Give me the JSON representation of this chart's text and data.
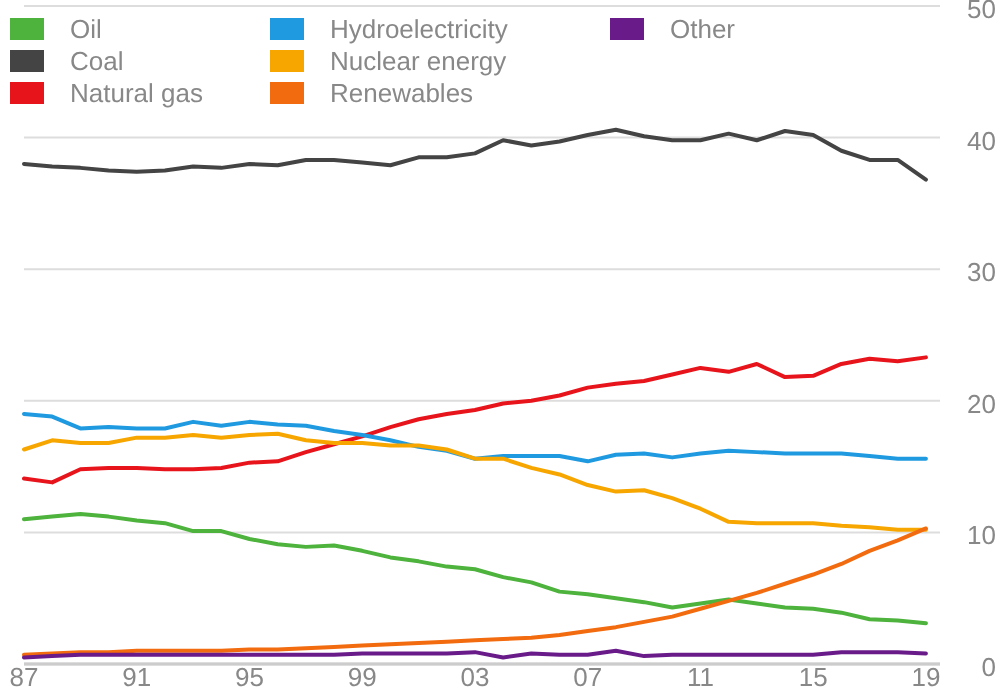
{
  "chart_data": {
    "type": "line",
    "x": [
      1987,
      1988,
      1989,
      1990,
      1991,
      1992,
      1993,
      1994,
      1995,
      1996,
      1997,
      1998,
      1999,
      2000,
      2001,
      2002,
      2003,
      2004,
      2005,
      2006,
      2007,
      2008,
      2009,
      2010,
      2011,
      2012,
      2013,
      2014,
      2015,
      2016,
      2017,
      2018,
      2019
    ],
    "series": [
      {
        "name": "Oil",
        "color": "#4db33d",
        "values": [
          11.0,
          11.2,
          11.4,
          11.2,
          10.9,
          10.7,
          10.1,
          10.1,
          9.5,
          9.1,
          8.9,
          9.0,
          8.6,
          8.1,
          7.8,
          7.4,
          7.2,
          6.6,
          6.2,
          5.5,
          5.3,
          5.0,
          4.7,
          4.3,
          4.6,
          4.9,
          4.6,
          4.3,
          4.2,
          3.9,
          3.4,
          3.3,
          3.1
        ]
      },
      {
        "name": "Coal",
        "color": "#444444",
        "values": [
          38.0,
          37.8,
          37.7,
          37.5,
          37.4,
          37.5,
          37.8,
          37.7,
          38.0,
          37.9,
          38.3,
          38.3,
          38.1,
          37.9,
          38.5,
          38.5,
          38.8,
          39.8,
          39.4,
          39.7,
          40.2,
          40.6,
          40.1,
          39.8,
          39.8,
          40.3,
          39.8,
          40.5,
          40.2,
          39.0,
          38.3,
          38.3,
          36.8
        ]
      },
      {
        "name": "Natural gas",
        "color": "#e8141c",
        "values": [
          14.1,
          13.8,
          14.8,
          14.9,
          14.9,
          14.8,
          14.8,
          14.9,
          15.3,
          15.4,
          16.1,
          16.7,
          17.3,
          18.0,
          18.6,
          19.0,
          19.3,
          19.8,
          20.0,
          20.4,
          21.0,
          21.3,
          21.5,
          22.0,
          22.5,
          22.2,
          22.8,
          21.8,
          21.9,
          22.8,
          23.2,
          23.0,
          23.3
        ]
      },
      {
        "name": "Hydroelectricity",
        "color": "#1f9ae0",
        "values": [
          19.0,
          18.8,
          17.9,
          18.0,
          17.9,
          17.9,
          18.4,
          18.1,
          18.4,
          18.2,
          18.1,
          17.7,
          17.4,
          17.0,
          16.5,
          16.2,
          15.6,
          15.8,
          15.8,
          15.8,
          15.4,
          15.9,
          16.0,
          15.7,
          16.0,
          16.2,
          16.1,
          16.0,
          16.0,
          16.0,
          15.8,
          15.6,
          15.6
        ]
      },
      {
        "name": "Nuclear energy",
        "color": "#f7a600",
        "values": [
          16.3,
          17.0,
          16.8,
          16.8,
          17.2,
          17.2,
          17.4,
          17.2,
          17.4,
          17.5,
          17.0,
          16.8,
          16.8,
          16.6,
          16.6,
          16.3,
          15.6,
          15.6,
          14.9,
          14.4,
          13.6,
          13.1,
          13.2,
          12.6,
          11.8,
          10.8,
          10.7,
          10.7,
          10.7,
          10.5,
          10.4,
          10.2,
          10.2
        ]
      },
      {
        "name": "Renewables",
        "color": "#f26b0f",
        "values": [
          0.7,
          0.8,
          0.9,
          0.9,
          1.0,
          1.0,
          1.0,
          1.0,
          1.1,
          1.1,
          1.2,
          1.3,
          1.4,
          1.5,
          1.6,
          1.7,
          1.8,
          1.9,
          2.0,
          2.2,
          2.5,
          2.8,
          3.2,
          3.6,
          4.2,
          4.8,
          5.4,
          6.1,
          6.8,
          7.6,
          8.6,
          9.4,
          10.3
        ]
      },
      {
        "name": "Other",
        "color": "#6a1b8a",
        "values": [
          0.5,
          0.6,
          0.7,
          0.7,
          0.7,
          0.7,
          0.7,
          0.7,
          0.7,
          0.7,
          0.7,
          0.7,
          0.8,
          0.8,
          0.8,
          0.8,
          0.9,
          0.5,
          0.8,
          0.7,
          0.7,
          1.0,
          0.6,
          0.7,
          0.7,
          0.7,
          0.7,
          0.7,
          0.7,
          0.9,
          0.9,
          0.9,
          0.8
        ]
      }
    ],
    "xlim": [
      1987,
      2019.5
    ],
    "xticks": [
      {
        "value": 1987,
        "label": "87"
      },
      {
        "value": 1991,
        "label": "91"
      },
      {
        "value": 1995,
        "label": "95"
      },
      {
        "value": 1999,
        "label": "99"
      },
      {
        "value": 2003,
        "label": "03"
      },
      {
        "value": 2007,
        "label": "07"
      },
      {
        "value": 2011,
        "label": "11"
      },
      {
        "value": 2015,
        "label": "15"
      },
      {
        "value": 2019,
        "label": "19"
      }
    ],
    "ylim": [
      0,
      50
    ],
    "yticks": [
      0,
      10,
      20,
      30,
      40,
      50
    ],
    "grid": "y",
    "legend": "top left",
    "marker": "none",
    "line_style": "solid"
  }
}
